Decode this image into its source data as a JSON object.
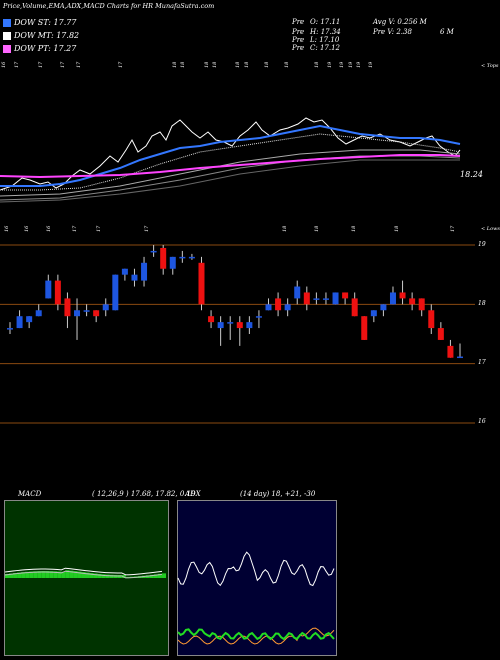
{
  "header": {
    "title": "Price,Volume,EMA,ADX,MACD Charts for HR MunafaSutra.com",
    "legend": [
      {
        "label": "DOW ST: 17.77",
        "color": "#3377ff"
      },
      {
        "label": "DOW MT: 17.82",
        "color": "#ffffff"
      },
      {
        "label": "DOW PT: 17.27",
        "color": "#ff66ff"
      }
    ],
    "stats": [
      {
        "label": "Pre",
        "text": "O: 17.11"
      },
      {
        "label": "Pre",
        "text": "H: 17.34"
      },
      {
        "label": "Pre",
        "text": "L: 17.10"
      },
      {
        "label": "Pre",
        "text": "C: 17.12"
      }
    ],
    "avg_volume": "Avg V: 0.256  M",
    "pre_volume": "Pre  V: 2.38",
    "pre_volume_unit": "6  M"
  },
  "colors": {
    "up": "#1e56e0",
    "down": "#ee1111",
    "ema_st": "#3377ff",
    "ema_pt": "#ff44ff",
    "grid": "#8a4a10",
    "macd_bg": "#003300",
    "macd_fill": "#22cc22",
    "adx_bg": "#000033",
    "adx_line": "#22dd22",
    "adx_diplus": "#ff9933"
  },
  "ema_panel": {
    "top_date_labels": [
      "16",
      "17",
      "17",
      "17",
      "17",
      "17",
      "18",
      "18",
      "18",
      "18",
      "18",
      "18",
      "18",
      "18",
      "18",
      "19",
      "19",
      "19",
      "19",
      "19"
    ],
    "bottom_date_labels": [
      "16",
      "16",
      "16",
      "17",
      "17",
      "17",
      "18",
      "18",
      "18",
      "18",
      "17"
    ],
    "ticks_right": [
      "< Tops",
      "18.24",
      "< Lows"
    ]
  },
  "chart_data": [
    {
      "type": "candlestick",
      "title": "",
      "y_ticks": [
        19,
        18,
        17,
        16
      ],
      "ylim": [
        15.8,
        19.3
      ],
      "candles": [
        {
          "o": 17.6,
          "h": 17.7,
          "l": 17.5,
          "c": 17.6
        },
        {
          "o": 17.6,
          "h": 17.9,
          "l": 17.6,
          "c": 17.8
        },
        {
          "o": 17.7,
          "h": 17.8,
          "l": 17.6,
          "c": 17.8
        },
        {
          "o": 17.8,
          "h": 18.0,
          "l": 17.8,
          "c": 17.9
        },
        {
          "o": 18.1,
          "h": 18.5,
          "l": 18.1,
          "c": 18.4
        },
        {
          "o": 18.4,
          "h": 18.5,
          "l": 17.9,
          "c": 18.0
        },
        {
          "o": 18.1,
          "h": 18.2,
          "l": 17.6,
          "c": 17.8
        },
        {
          "o": 17.8,
          "h": 18.1,
          "l": 17.4,
          "c": 17.9
        },
        {
          "o": 17.9,
          "h": 18.0,
          "l": 17.8,
          "c": 17.9
        },
        {
          "o": 17.9,
          "h": 17.9,
          "l": 17.7,
          "c": 17.8
        },
        {
          "o": 17.9,
          "h": 18.1,
          "l": 17.8,
          "c": 18.0
        },
        {
          "o": 17.9,
          "h": 18.5,
          "l": 17.9,
          "c": 18.5
        },
        {
          "o": 18.5,
          "h": 18.6,
          "l": 18.4,
          "c": 18.6
        },
        {
          "o": 18.4,
          "h": 18.6,
          "l": 18.3,
          "c": 18.5
        },
        {
          "o": 18.4,
          "h": 18.8,
          "l": 18.3,
          "c": 18.7
        },
        {
          "o": 18.9,
          "h": 19.0,
          "l": 18.8,
          "c": 18.9
        },
        {
          "o": 18.95,
          "h": 19.0,
          "l": 18.5,
          "c": 18.6
        },
        {
          "o": 18.6,
          "h": 18.8,
          "l": 18.5,
          "c": 18.8
        },
        {
          "o": 18.8,
          "h": 18.9,
          "l": 18.7,
          "c": 18.8
        },
        {
          "o": 18.8,
          "h": 18.85,
          "l": 18.75,
          "c": 18.8
        },
        {
          "o": 18.7,
          "h": 18.8,
          "l": 17.9,
          "c": 18.0
        },
        {
          "o": 17.8,
          "h": 17.9,
          "l": 17.6,
          "c": 17.7
        },
        {
          "o": 17.6,
          "h": 17.8,
          "l": 17.3,
          "c": 17.7
        },
        {
          "o": 17.7,
          "h": 17.8,
          "l": 17.4,
          "c": 17.7
        },
        {
          "o": 17.7,
          "h": 17.8,
          "l": 17.3,
          "c": 17.6
        },
        {
          "o": 17.6,
          "h": 17.8,
          "l": 17.5,
          "c": 17.7
        },
        {
          "o": 17.8,
          "h": 17.9,
          "l": 17.6,
          "c": 17.8
        },
        {
          "o": 17.9,
          "h": 18.1,
          "l": 17.9,
          "c": 18.0
        },
        {
          "o": 18.1,
          "h": 18.2,
          "l": 17.8,
          "c": 17.9
        },
        {
          "o": 17.9,
          "h": 18.1,
          "l": 17.8,
          "c": 18.0
        },
        {
          "o": 18.1,
          "h": 18.4,
          "l": 18.0,
          "c": 18.3
        },
        {
          "o": 18.2,
          "h": 18.3,
          "l": 17.9,
          "c": 18.0
        },
        {
          "o": 18.1,
          "h": 18.2,
          "l": 18.0,
          "c": 18.1
        },
        {
          "o": 18.1,
          "h": 18.2,
          "l": 18.0,
          "c": 18.1
        },
        {
          "o": 18.0,
          "h": 18.2,
          "l": 18.0,
          "c": 18.2
        },
        {
          "o": 18.2,
          "h": 18.2,
          "l": 18.0,
          "c": 18.1
        },
        {
          "o": 18.1,
          "h": 18.2,
          "l": 17.8,
          "c": 17.8
        },
        {
          "o": 17.8,
          "h": 17.8,
          "l": 17.4,
          "c": 17.4
        },
        {
          "o": 17.8,
          "h": 17.9,
          "l": 17.7,
          "c": 17.9
        },
        {
          "o": 17.9,
          "h": 18.0,
          "l": 17.8,
          "c": 18.0
        },
        {
          "o": 18.0,
          "h": 18.3,
          "l": 18.0,
          "c": 18.2
        },
        {
          "o": 18.2,
          "h": 18.4,
          "l": 18.0,
          "c": 18.1
        },
        {
          "o": 18.1,
          "h": 18.2,
          "l": 17.9,
          "c": 18.0
        },
        {
          "o": 18.1,
          "h": 18.1,
          "l": 17.8,
          "c": 17.9
        },
        {
          "o": 17.9,
          "h": 18.0,
          "l": 17.5,
          "c": 17.6
        },
        {
          "o": 17.6,
          "h": 17.7,
          "l": 17.4,
          "c": 17.4
        },
        {
          "o": 17.3,
          "h": 17.4,
          "l": 17.1,
          "c": 17.1
        },
        {
          "o": 17.12,
          "h": 17.34,
          "l": 17.1,
          "c": 17.12
        }
      ]
    },
    {
      "type": "line",
      "title": "MACD",
      "params": "( 12,26,9 ) 17.68,  17.82,  0.19"
    },
    {
      "type": "line",
      "title": "ADX",
      "params": "(14  day) 18,  +21,  -30"
    }
  ]
}
